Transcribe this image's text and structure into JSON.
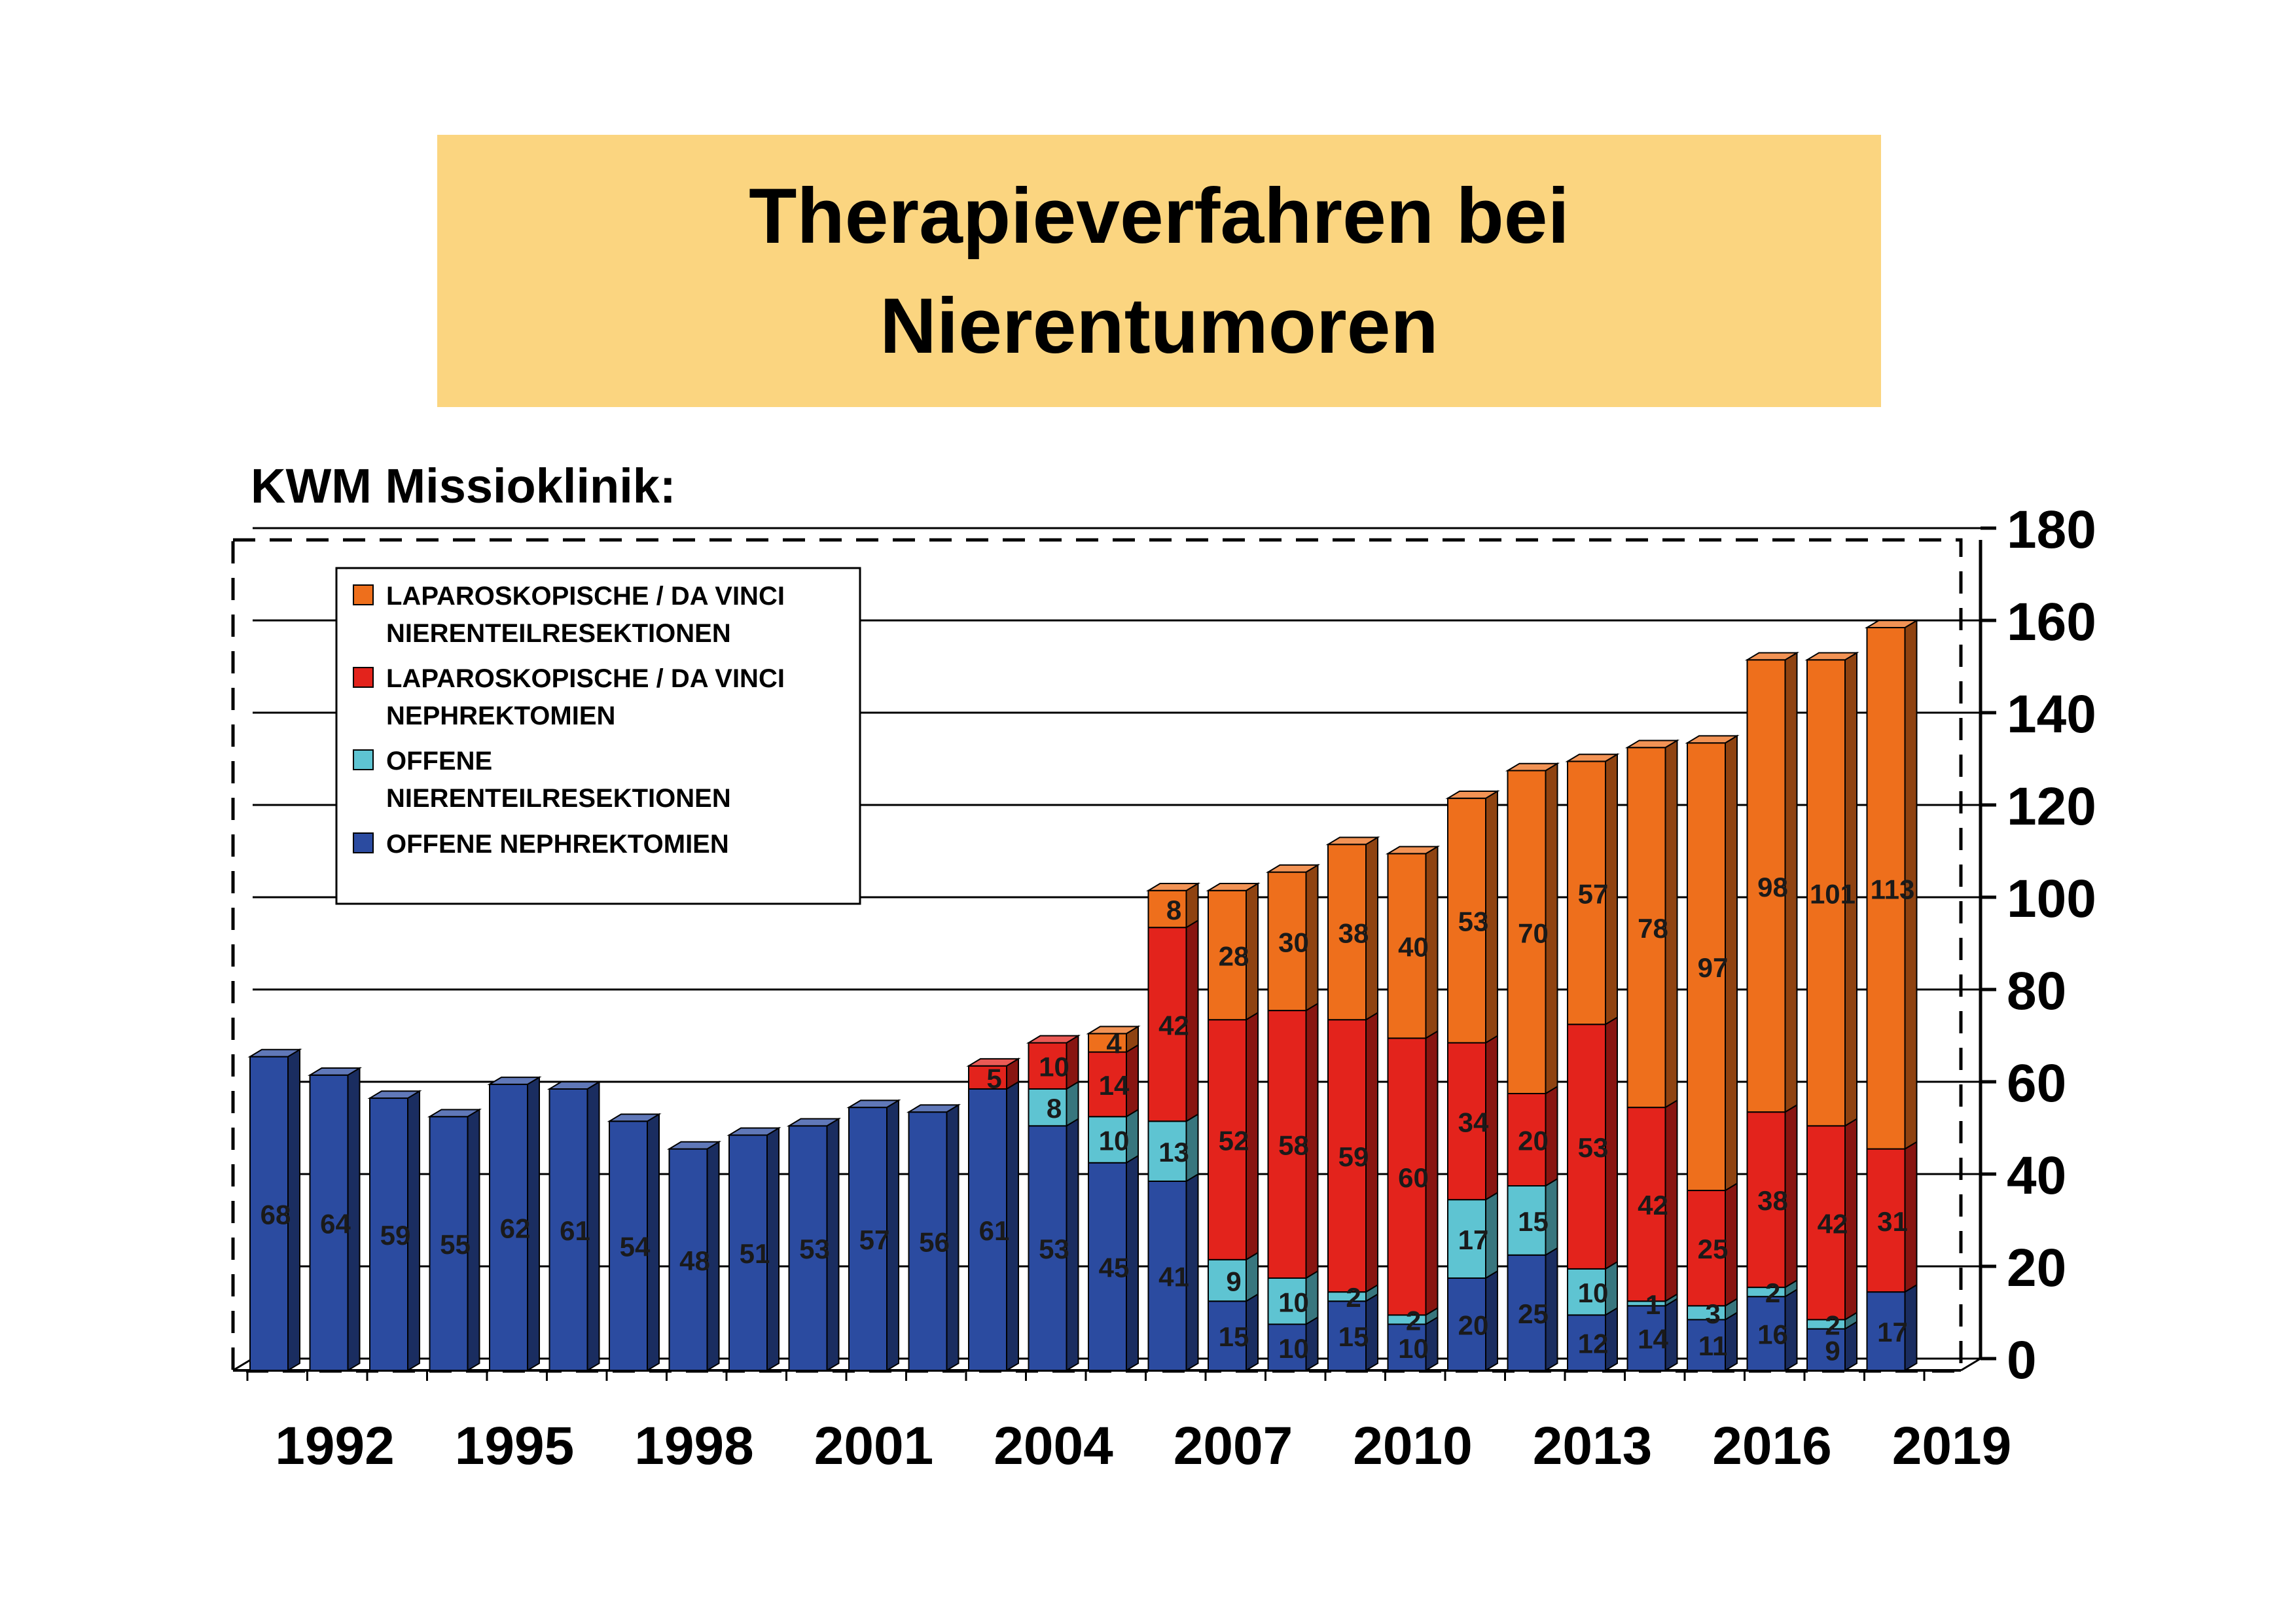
{
  "title": "Therapieverfahren bei\nNierentumoren",
  "subtitle": "KWM Missioklinik:",
  "colors": {
    "title_bg": "#fbd580",
    "offene_nephrektomien": "#2b4ba0",
    "offene_teilresektionen": "#5ec4d2",
    "lap_nephrektomien": "#e3231c",
    "lap_teilresektionen": "#ee6f1c"
  },
  "chart_data": {
    "type": "bar",
    "stacked": true,
    "three_d": true,
    "x": [
      1991,
      1992,
      1993,
      1994,
      1995,
      1996,
      1997,
      1998,
      1999,
      2000,
      2001,
      2002,
      2003,
      2004,
      2005,
      2006,
      2007,
      2008,
      2009,
      2010,
      2011,
      2012,
      2013,
      2014,
      2015,
      2016,
      2017,
      2018
    ],
    "x_ticks": [
      "1992",
      "1995",
      "1998",
      "2001",
      "2004",
      "2007",
      "2010",
      "2013",
      "2016",
      "2019"
    ],
    "y_ticks": [
      "0",
      "20",
      "40",
      "60",
      "80",
      "100",
      "120",
      "140",
      "160",
      "180"
    ],
    "ylim": [
      0,
      180
    ],
    "y_axis_side": "right",
    "grid": true,
    "legend_position": "top-left",
    "series": [
      {
        "name": "OFFENE NEPHREKTOMIEN",
        "color": "#2b4ba0",
        "values": [
          68,
          64,
          59,
          55,
          62,
          61,
          54,
          48,
          51,
          53,
          57,
          56,
          61,
          53,
          45,
          41,
          15,
          10,
          15,
          10,
          20,
          25,
          12,
          14,
          11,
          16,
          9,
          17
        ]
      },
      {
        "name": "OFFENE NIERENTEILRESEKTIONEN",
        "color": "#5ec4d2",
        "values": [
          0,
          0,
          0,
          0,
          0,
          0,
          0,
          0,
          0,
          0,
          0,
          0,
          0,
          8,
          10,
          13,
          9,
          10,
          2,
          2,
          17,
          15,
          10,
          1,
          3,
          2,
          2,
          0
        ]
      },
      {
        "name": "LAPAROSKOPISCHE / DA VINCI NEPHREKTOMIEN",
        "color": "#e3231c",
        "values": [
          0,
          0,
          0,
          0,
          0,
          0,
          0,
          0,
          0,
          0,
          0,
          0,
          5,
          10,
          14,
          42,
          52,
          58,
          59,
          60,
          34,
          20,
          53,
          42,
          25,
          38,
          42,
          31
        ]
      },
      {
        "name": "LAPAROSKOPISCHE / DA VINCI NIERENTEILRESEKTIONEN",
        "color": "#ee6f1c",
        "values": [
          0,
          0,
          0,
          0,
          0,
          0,
          0,
          0,
          0,
          0,
          0,
          0,
          0,
          0,
          4,
          8,
          28,
          30,
          38,
          40,
          53,
          70,
          57,
          78,
          97,
          98,
          101,
          113
        ]
      }
    ],
    "legend": [
      {
        "line1": "LAPAROSKOPISCHE / DA VINCI",
        "line2": "NIERENTEILRESEKTIONEN",
        "color": "#ee6f1c"
      },
      {
        "line1": "LAPAROSKOPISCHE / DA VINCI",
        "line2": "NEPHREKTOMIEN",
        "color": "#e3231c"
      },
      {
        "line1": "OFFENE",
        "line2": "NIERENTEILRESEKTIONEN",
        "color": "#5ec4d2"
      },
      {
        "line1": "OFFENE NEPHREKTOMIEN",
        "line2": "",
        "color": "#2b4ba0"
      }
    ]
  }
}
